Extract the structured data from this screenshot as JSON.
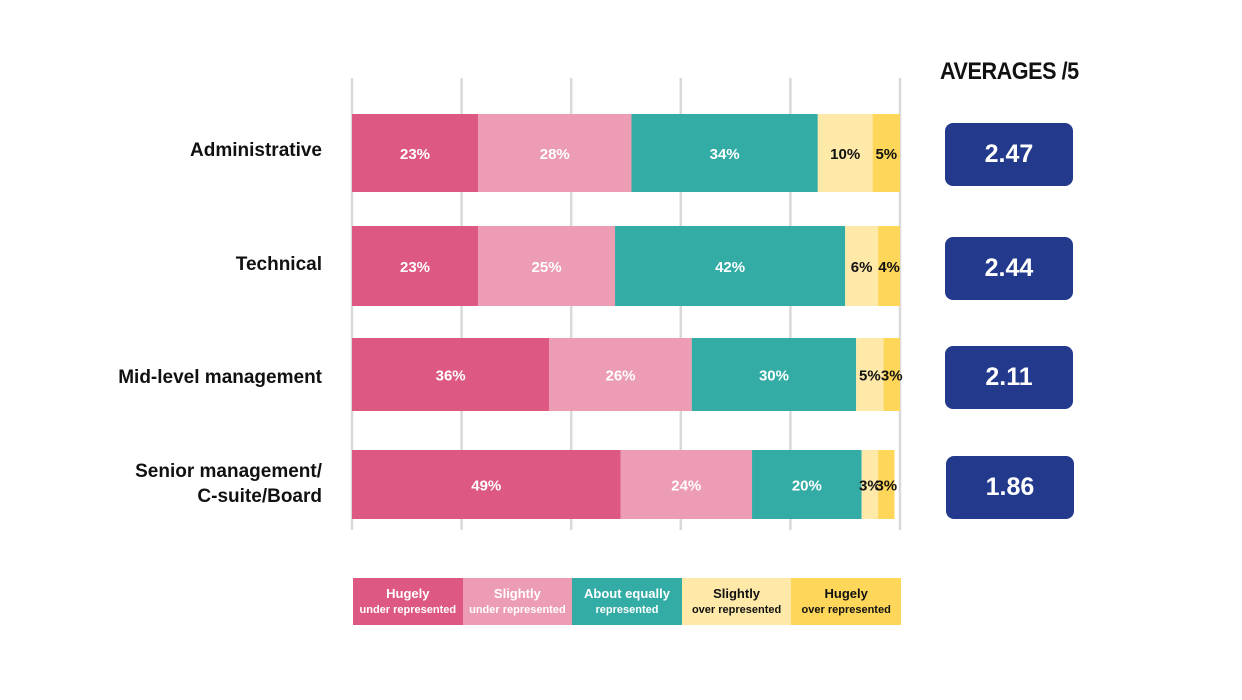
{
  "chart_data": {
    "type": "bar",
    "orientation": "horizontal",
    "stacked": true,
    "categories": [
      "Administrative",
      "Technical",
      "Mid-level management",
      "Senior management/C-suite/Board"
    ],
    "category_lines": [
      [
        "Administrative"
      ],
      [
        "Technical"
      ],
      [
        "Mid-level management"
      ],
      [
        "Senior management/",
        "C-suite/Board"
      ]
    ],
    "series": [
      {
        "name": "Hugely under represented",
        "values": [
          23,
          23,
          36,
          49
        ],
        "color": "#de5981",
        "text_color": "#ffffff"
      },
      {
        "name": "Slightly under represented",
        "values": [
          28,
          25,
          26,
          24
        ],
        "color": "#ec9cb3",
        "text_color": "#ffffff"
      },
      {
        "name": "About equally represented",
        "values": [
          34,
          42,
          30,
          20
        ],
        "color": "#33aca5",
        "text_color": "#ffffff"
      },
      {
        "name": "Slightly over represented",
        "values": [
          10,
          6,
          5,
          3
        ],
        "color": "#fee9a8",
        "text_color": "#111111"
      },
      {
        "name": "Hugely over represented",
        "values": [
          5,
          4,
          3,
          3
        ],
        "color": "#fdd65a",
        "text_color": "#111111"
      }
    ],
    "value_suffix": "%",
    "xlim": [
      0,
      100
    ],
    "grid": true,
    "grid_color": "#d9d9d9",
    "legend_position": "bottom",
    "averages_title": "AVERAGES /5",
    "averages": [
      "2.47",
      "2.44",
      "2.11",
      "1.86"
    ],
    "average_box_color": "#233a8c"
  },
  "legend": [
    {
      "line1": "Hugely",
      "line2": "under represented",
      "color": "#de5981",
      "text_color": "#ffffff"
    },
    {
      "line1": "Slightly",
      "line2": "under represented",
      "color": "#ec9cb3",
      "text_color": "#ffffff"
    },
    {
      "line1": "About equally",
      "line2": "represented",
      "color": "#33aca5",
      "text_color": "#ffffff"
    },
    {
      "line1": "Slightly",
      "line2": "over represented",
      "color": "#fee9a8",
      "text_color": "#111111"
    },
    {
      "line1": "Hugely",
      "line2": "over represented",
      "color": "#fdd65a",
      "text_color": "#111111"
    }
  ]
}
